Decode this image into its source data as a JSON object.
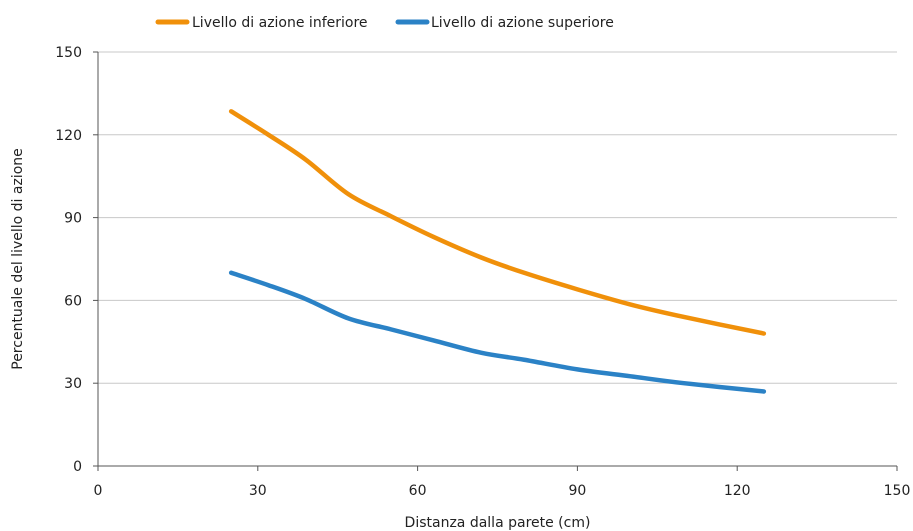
{
  "chart_data": {
    "type": "line",
    "xlabel": "Distanza dalla parete (cm)",
    "ylabel": "Percentuale del livello di azione",
    "xlim": [
      0,
      150
    ],
    "ylim": [
      0,
      150
    ],
    "xticks": [
      0,
      30,
      60,
      90,
      120,
      150
    ],
    "yticks": [
      0,
      30,
      60,
      90,
      120,
      150
    ],
    "grid": "horizontal",
    "legend_position": "top",
    "series": [
      {
        "name": "Livello di azione inferiore",
        "color": "#f0900a",
        "points": [
          [
            25,
            128.5
          ],
          [
            32,
            120
          ],
          [
            39,
            111
          ],
          [
            47,
            98.5
          ],
          [
            55,
            90.5
          ],
          [
            63,
            83
          ],
          [
            72,
            75.5
          ],
          [
            80,
            70
          ],
          [
            90,
            64
          ],
          [
            100,
            58.5
          ],
          [
            110,
            54
          ],
          [
            125,
            48
          ]
        ]
      },
      {
        "name": "Livello di azione superiore",
        "color": "#2b82c6",
        "points": [
          [
            25,
            70
          ],
          [
            32,
            65.5
          ],
          [
            39,
            60.5
          ],
          [
            47,
            53.5
          ],
          [
            55,
            49.5
          ],
          [
            63,
            45.5
          ],
          [
            72,
            41
          ],
          [
            80,
            38.5
          ],
          [
            90,
            35
          ],
          [
            100,
            32.5
          ],
          [
            110,
            30
          ],
          [
            125,
            27
          ]
        ]
      }
    ]
  }
}
